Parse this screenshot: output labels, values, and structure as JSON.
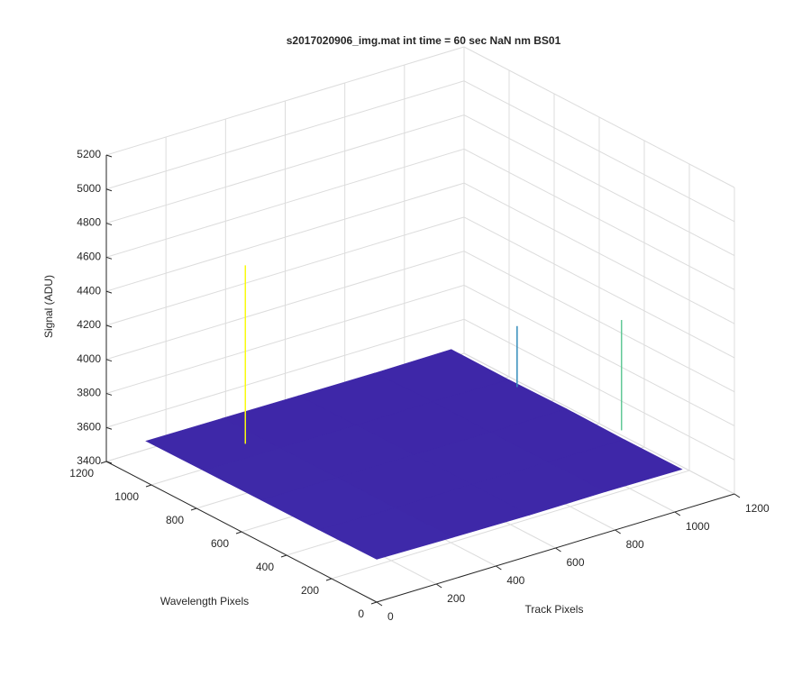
{
  "chart_data": {
    "type": "surface3d",
    "title": "s2017020906_img.mat int time = 60 sec  NaN nm BS01",
    "xlabel": "Track Pixels",
    "ylabel": "Wavelength Pixels",
    "zlabel": "Signal (ADU)",
    "x": [
      0,
      256,
      512,
      768,
      1024
    ],
    "y": [
      0,
      256,
      512,
      768,
      1024
    ],
    "z": [
      [
        3652,
        3645,
        3640,
        3642,
        3638
      ],
      [
        3648,
        3641,
        3644,
        3639,
        3636
      ],
      [
        3646,
        3643,
        3641,
        3637,
        3640
      ],
      [
        3644,
        3640,
        3638,
        3642,
        3635
      ],
      [
        3641,
        3639,
        3636,
        3634,
        3637
      ]
    ],
    "peaks": {
      "x": [
        192,
        1000,
        1045
      ],
      "y": [
        837,
        700,
        296
      ],
      "z": [
        4700,
        4010,
        4300
      ]
    },
    "xlim": [
      0,
      1200
    ],
    "ylim": [
      0,
      1200
    ],
    "zlim": [
      3400,
      5200
    ],
    "xticks": [
      0,
      200,
      400,
      600,
      800,
      1000,
      1200
    ],
    "yticks": [
      0,
      200,
      400,
      600,
      800,
      1000,
      1200
    ],
    "zticks": [
      3400,
      3600,
      3800,
      4000,
      4200,
      4400,
      4600,
      4800,
      5000,
      5200
    ],
    "grid": true,
    "colormap": [
      "#3e26a8",
      "#2fb7c3",
      "#f9fb0e"
    ]
  }
}
